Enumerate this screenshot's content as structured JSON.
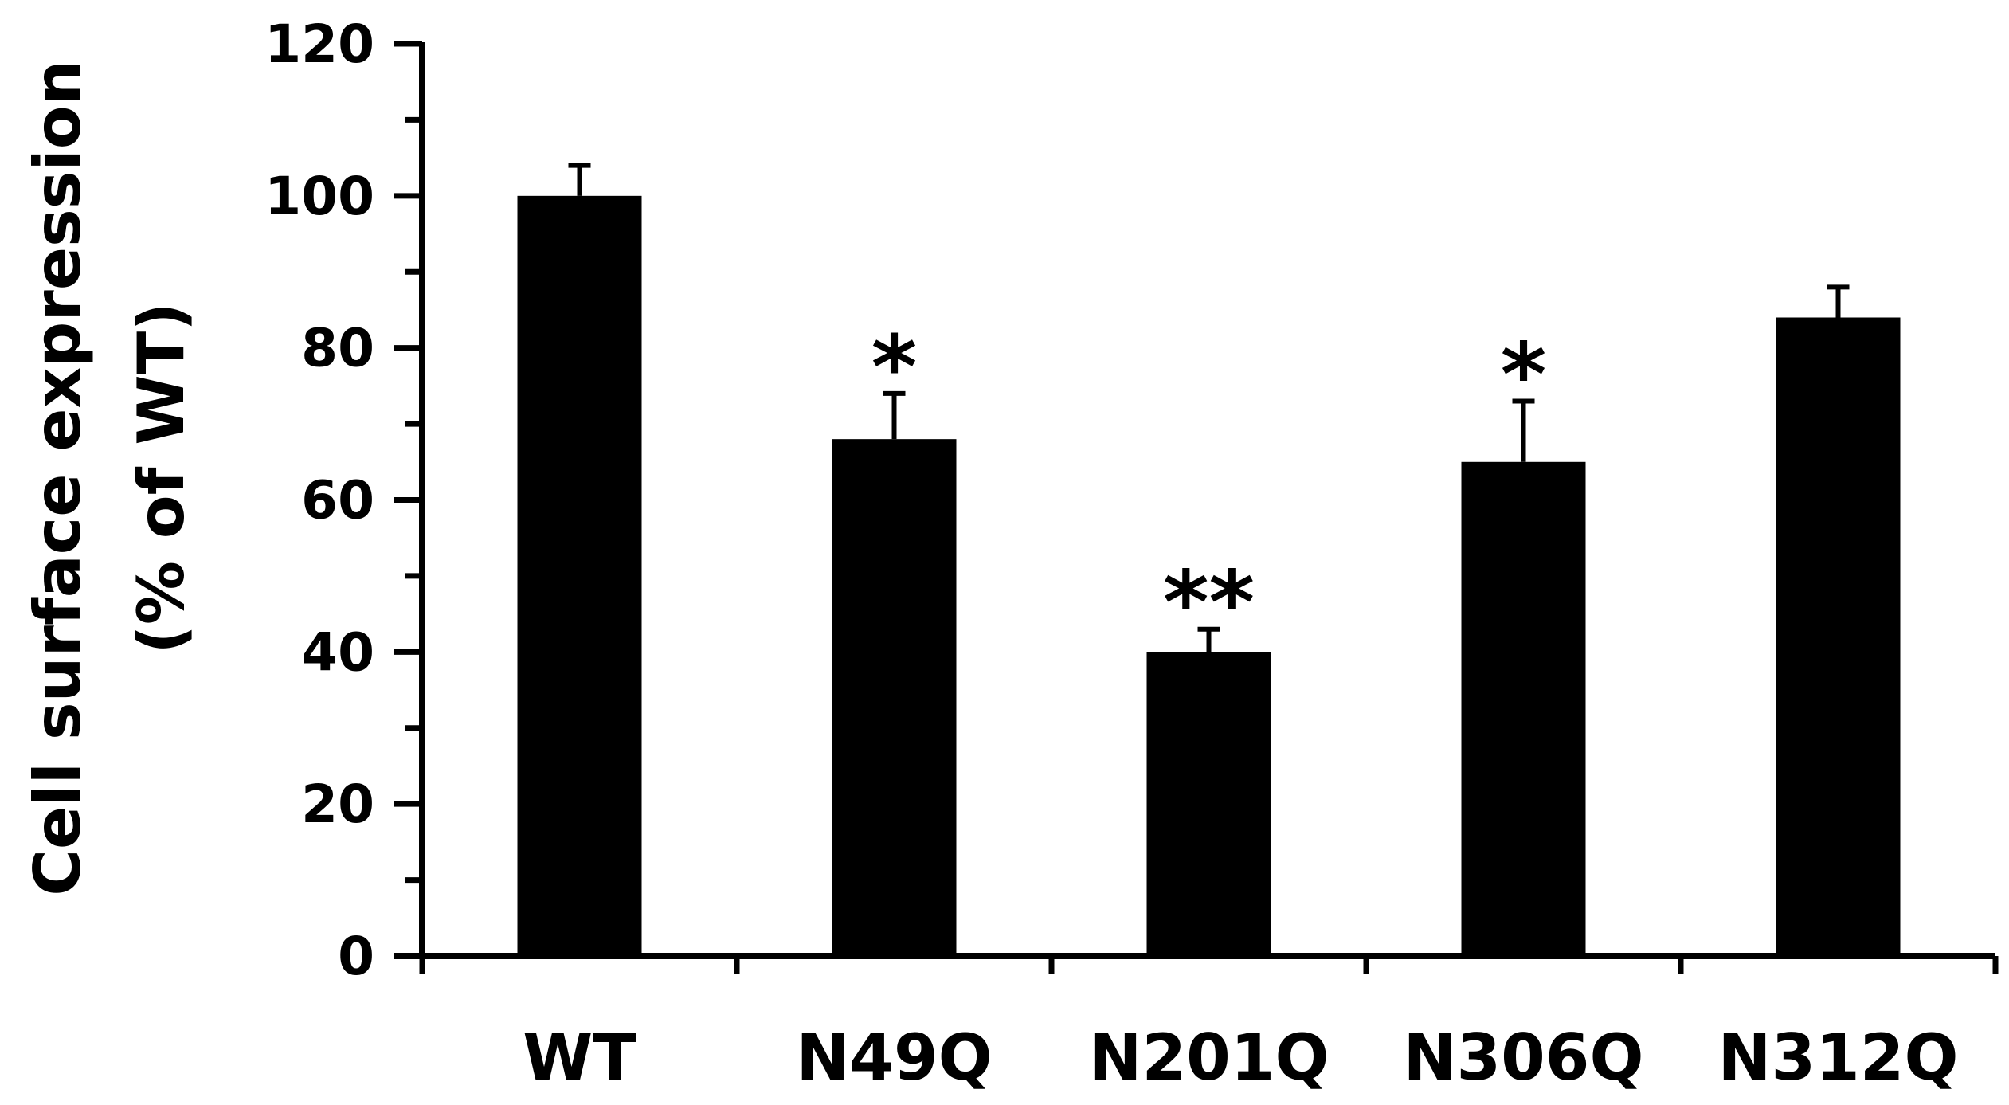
{
  "chart_data": {
    "type": "bar",
    "title": "",
    "xlabel": "",
    "ylabel_line1": "Cell surface expression",
    "ylabel_line2": "(% of WT)",
    "categories": [
      "WT",
      "N49Q",
      "N201Q",
      "N306Q",
      "N312Q"
    ],
    "values": [
      100,
      68,
      40,
      65,
      84
    ],
    "errors": [
      4,
      6,
      3,
      8,
      4
    ],
    "significance": [
      "",
      "*",
      "**",
      "*",
      ""
    ],
    "ylim": [
      0,
      120
    ],
    "yticks": [
      0,
      20,
      40,
      60,
      80,
      100,
      120
    ],
    "grid": false,
    "legend": "none",
    "bar_color": "#000000"
  }
}
